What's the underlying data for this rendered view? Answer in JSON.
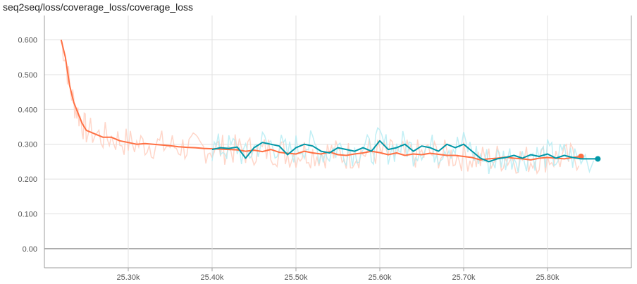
{
  "chart_data": {
    "type": "line",
    "title": "seq2seq/loss/coverage_loss/coverage_loss",
    "xlabel": "",
    "ylabel": "",
    "xlim": [
      25.2,
      25.9
    ],
    "ylim": [
      -0.055,
      0.67
    ],
    "grid": true,
    "y_ticks": [
      {
        "value": 0.0,
        "label": "0.00"
      },
      {
        "value": 0.1,
        "label": "0.100"
      },
      {
        "value": 0.2,
        "label": "0.200"
      },
      {
        "value": 0.3,
        "label": "0.300"
      },
      {
        "value": 0.4,
        "label": "0.400"
      },
      {
        "value": 0.5,
        "label": "0.500"
      },
      {
        "value": 0.6,
        "label": "0.600"
      }
    ],
    "x_ticks": [
      {
        "value": 25.3,
        "label": "25.30k"
      },
      {
        "value": 25.4,
        "label": "25.40k"
      },
      {
        "value": 25.5,
        "label": "25.50k"
      },
      {
        "value": 25.6,
        "label": "25.60k"
      },
      {
        "value": 25.7,
        "label": "25.70k"
      },
      {
        "value": 25.8,
        "label": "25.80k"
      }
    ],
    "series": [
      {
        "color": "#ff7043",
        "raw_color": "#ffccbc",
        "x": [
          25.22,
          25.225,
          25.23,
          25.235,
          25.24,
          25.245,
          25.25,
          25.26,
          25.27,
          25.28,
          25.29,
          25.3,
          25.31,
          25.32,
          25.33,
          25.34,
          25.35,
          25.36,
          25.37,
          25.38,
          25.39,
          25.4,
          25.41,
          25.42,
          25.43,
          25.44,
          25.45,
          25.46,
          25.47,
          25.48,
          25.49,
          25.5,
          25.51,
          25.52,
          25.53,
          25.54,
          25.55,
          25.56,
          25.57,
          25.58,
          25.59,
          25.6,
          25.61,
          25.62,
          25.63,
          25.64,
          25.65,
          25.66,
          25.67,
          25.68,
          25.69,
          25.7,
          25.71,
          25.72,
          25.73,
          25.74,
          25.75,
          25.76,
          25.77,
          25.78,
          25.79,
          25.8,
          25.81,
          25.82,
          25.83,
          25.84
        ],
        "values": [
          0.6,
          0.55,
          0.47,
          0.42,
          0.39,
          0.36,
          0.34,
          0.33,
          0.32,
          0.32,
          0.31,
          0.305,
          0.3,
          0.302,
          0.3,
          0.298,
          0.296,
          0.293,
          0.291,
          0.29,
          0.288,
          0.287,
          0.286,
          0.285,
          0.284,
          0.28,
          0.283,
          0.279,
          0.285,
          0.277,
          0.274,
          0.272,
          0.28,
          0.275,
          0.272,
          0.278,
          0.27,
          0.268,
          0.272,
          0.275,
          0.28,
          0.276,
          0.27,
          0.275,
          0.268,
          0.272,
          0.27,
          0.274,
          0.271,
          0.268,
          0.268,
          0.265,
          0.262,
          0.255,
          0.258,
          0.26,
          0.263,
          0.26,
          0.258,
          0.255,
          0.26,
          0.262,
          0.26,
          0.258,
          0.262,
          0.265
        ]
      },
      {
        "color": "#0097a7",
        "raw_color": "#b2ebf2",
        "x": [
          25.4,
          25.41,
          25.42,
          25.43,
          25.44,
          25.45,
          25.46,
          25.47,
          25.48,
          25.49,
          25.5,
          25.51,
          25.52,
          25.53,
          25.54,
          25.55,
          25.56,
          25.57,
          25.58,
          25.59,
          25.6,
          25.61,
          25.62,
          25.63,
          25.64,
          25.65,
          25.66,
          25.67,
          25.68,
          25.69,
          25.7,
          25.71,
          25.72,
          25.73,
          25.74,
          25.75,
          25.76,
          25.77,
          25.78,
          25.79,
          25.8,
          25.81,
          25.82,
          25.83,
          25.84,
          25.86
        ],
        "values": [
          0.285,
          0.29,
          0.288,
          0.292,
          0.26,
          0.29,
          0.305,
          0.3,
          0.295,
          0.27,
          0.29,
          0.3,
          0.295,
          0.28,
          0.275,
          0.29,
          0.285,
          0.28,
          0.29,
          0.28,
          0.31,
          0.285,
          0.29,
          0.3,
          0.28,
          0.295,
          0.29,
          0.28,
          0.3,
          0.29,
          0.3,
          0.28,
          0.26,
          0.25,
          0.258,
          0.262,
          0.268,
          0.26,
          0.27,
          0.265,
          0.272,
          0.26,
          0.268,
          0.262,
          0.258,
          0.258
        ]
      }
    ]
  }
}
